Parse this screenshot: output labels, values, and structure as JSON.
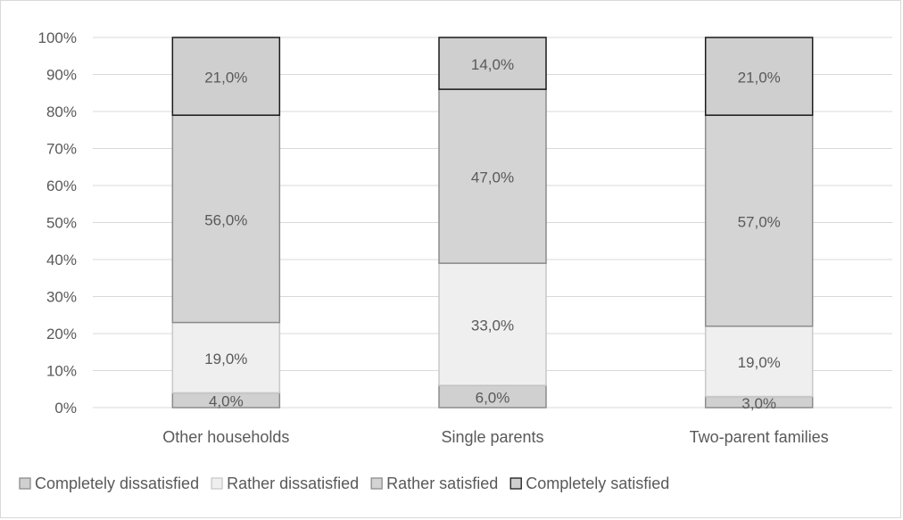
{
  "chart_data": {
    "type": "bar",
    "stacked": true,
    "percent_stacked": true,
    "categories": [
      "Other households",
      "Single parents",
      "Two-parent families"
    ],
    "series": [
      {
        "name": "Completely dissatisfied",
        "values": [
          4.0,
          6.0,
          3.0
        ],
        "color": "#d0d0d0",
        "stroke": "#8c8c8c",
        "labels": [
          "4,0%",
          "6,0%",
          "3,0%"
        ]
      },
      {
        "name": "Rather dissatisfied",
        "values": [
          19.0,
          33.0,
          19.0
        ],
        "color": "#efefef",
        "stroke": "#c8c8c8",
        "labels": [
          "19,0%",
          "33,0%",
          "19,0%"
        ]
      },
      {
        "name": "Rather satisfied",
        "values": [
          56.0,
          47.0,
          57.0
        ],
        "color": "#d4d4d4",
        "stroke": "#8c8c8c",
        "labels": [
          "56,0%",
          "47,0%",
          "57,0%"
        ]
      },
      {
        "name": "Completely satisfied",
        "values": [
          21.0,
          14.0,
          21.0
        ],
        "color": "#cfcfcf",
        "stroke": "#1a1a1a",
        "labels": [
          "21,0%",
          "14,0%",
          "21,0%"
        ]
      }
    ],
    "ylim": [
      0,
      100
    ],
    "yticks": [
      "0%",
      "10%",
      "20%",
      "30%",
      "40%",
      "50%",
      "60%",
      "70%",
      "80%",
      "90%",
      "100%"
    ],
    "grid": true,
    "legend_position": "bottom",
    "title": "",
    "xlabel": "",
    "ylabel": ""
  }
}
